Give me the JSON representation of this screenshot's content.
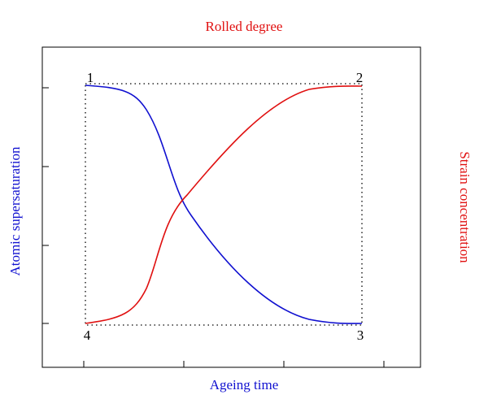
{
  "title": "Rolled degree",
  "x_axis_label": "Ageing time",
  "left_axis_label": "Atomic supersaturation",
  "right_axis_label": "Strain concentration",
  "corners": [
    "1",
    "2",
    "3",
    "4"
  ]
}
